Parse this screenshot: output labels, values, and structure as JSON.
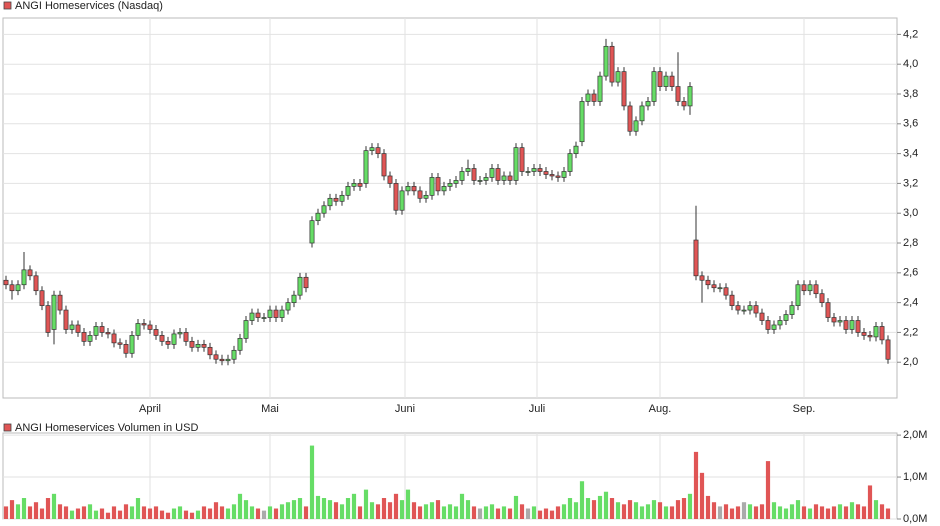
{
  "chart_data": [
    {
      "type": "candlestick",
      "title": "ANGI Homeservices (Nasdaq)",
      "up_color": "#66dd66",
      "down_color": "#e05555",
      "grid": true,
      "xlim": [
        -0.5,
        148.5
      ],
      "xticks": [
        {
          "value": 24,
          "label": "April"
        },
        {
          "value": 44,
          "label": "Mai"
        },
        {
          "value": 66.5,
          "label": "Juni"
        },
        {
          "value": 88.5,
          "label": "Juli"
        },
        {
          "value": 109,
          "label": "Aug."
        },
        {
          "value": 133,
          "label": "Sep."
        }
      ],
      "ylim": [
        1.76,
        4.31
      ],
      "yticks": [
        {
          "value": 2.0,
          "label": "2,0"
        },
        {
          "value": 2.2,
          "label": "2,2"
        },
        {
          "value": 2.4,
          "label": "2,4"
        },
        {
          "value": 2.6,
          "label": "2,6"
        },
        {
          "value": 2.8,
          "label": "2,8"
        },
        {
          "value": 3.0,
          "label": "3,0"
        },
        {
          "value": 3.2,
          "label": "3,2"
        },
        {
          "value": 3.4,
          "label": "3,4"
        },
        {
          "value": 3.6,
          "label": "3,6"
        },
        {
          "value": 3.8,
          "label": "3,8"
        },
        {
          "value": 4.0,
          "label": "4,0"
        },
        {
          "value": 4.2,
          "label": "4,2"
        }
      ],
      "open": [
        2.55,
        2.52,
        2.48,
        2.52,
        2.62,
        2.58,
        2.48,
        2.38,
        2.22,
        2.45,
        2.35,
        2.22,
        2.25,
        2.2,
        2.14,
        2.18,
        2.24,
        2.2,
        2.19,
        2.13,
        2.12,
        2.06,
        2.18,
        2.26,
        2.25,
        2.22,
        2.18,
        2.14,
        2.12,
        2.19,
        2.2,
        2.14,
        2.1,
        2.12,
        2.1,
        2.05,
        2.02,
        2.01,
        2.02,
        2.08,
        2.16,
        2.28,
        2.33,
        2.3,
        2.3,
        2.35,
        2.3,
        2.35,
        2.4,
        2.45,
        2.57,
        2.8,
        2.95,
        3.0,
        3.05,
        3.1,
        3.08,
        3.12,
        3.18,
        3.2,
        3.2,
        3.42,
        3.44,
        3.4,
        3.25,
        3.2,
        3.02,
        3.15,
        3.18,
        3.15,
        3.1,
        3.12,
        3.24,
        3.15,
        3.18,
        3.2,
        3.22,
        3.28,
        3.3,
        3.22,
        3.22,
        3.24,
        3.3,
        3.22,
        3.25,
        3.22,
        3.44,
        3.28,
        3.28,
        3.3,
        3.28,
        3.26,
        3.25,
        3.24,
        3.28,
        3.4,
        3.48,
        3.75,
        3.8,
        3.75,
        3.92,
        4.12,
        3.88,
        3.95,
        3.72,
        3.55,
        3.62,
        3.72,
        3.75,
        3.95,
        3.85,
        3.92,
        3.85,
        3.75,
        3.72,
        2.82,
        2.58,
        2.55,
        2.52,
        2.5,
        2.5,
        2.45,
        2.38,
        2.35,
        2.35,
        2.38,
        2.33,
        2.28,
        2.22,
        2.25,
        2.28,
        2.32,
        2.38,
        2.52,
        2.48,
        2.52,
        2.46,
        2.4,
        2.3,
        2.27,
        2.28,
        2.22,
        2.28,
        2.2,
        2.18,
        2.17,
        2.24,
        2.15
      ],
      "high": [
        2.58,
        2.55,
        2.55,
        2.74,
        2.65,
        2.61,
        2.51,
        2.41,
        2.48,
        2.48,
        2.38,
        2.28,
        2.28,
        2.23,
        2.21,
        2.27,
        2.27,
        2.23,
        2.22,
        2.16,
        2.15,
        2.21,
        2.29,
        2.29,
        2.28,
        2.25,
        2.21,
        2.17,
        2.22,
        2.23,
        2.23,
        2.17,
        2.15,
        2.15,
        2.13,
        2.08,
        2.05,
        2.05,
        2.11,
        2.19,
        2.31,
        2.36,
        2.36,
        2.33,
        2.38,
        2.38,
        2.38,
        2.43,
        2.48,
        2.6,
        2.6,
        2.98,
        3.03,
        3.08,
        3.13,
        3.13,
        3.15,
        3.21,
        3.23,
        3.23,
        3.45,
        3.47,
        3.47,
        3.43,
        3.28,
        3.23,
        3.18,
        3.21,
        3.21,
        3.18,
        3.15,
        3.27,
        3.27,
        3.21,
        3.23,
        3.25,
        3.31,
        3.36,
        3.33,
        3.25,
        3.27,
        3.33,
        3.33,
        3.28,
        3.28,
        3.47,
        3.47,
        3.31,
        3.33,
        3.33,
        3.31,
        3.29,
        3.28,
        3.31,
        3.43,
        3.48,
        3.78,
        3.83,
        3.83,
        3.95,
        4.17,
        4.15,
        3.98,
        3.98,
        3.75,
        3.65,
        3.75,
        3.78,
        3.98,
        3.98,
        3.95,
        3.95,
        4.08,
        3.78,
        3.88,
        3.05,
        2.61,
        2.58,
        2.55,
        2.53,
        2.53,
        2.48,
        2.41,
        2.38,
        2.41,
        2.41,
        2.36,
        2.31,
        2.28,
        2.31,
        2.35,
        2.41,
        2.55,
        2.55,
        2.55,
        2.55,
        2.49,
        2.43,
        2.33,
        2.31,
        2.31,
        2.31,
        2.31,
        2.23,
        2.21,
        2.27,
        2.27,
        2.18
      ],
      "low": [
        2.49,
        2.42,
        2.45,
        2.49,
        2.55,
        2.45,
        2.35,
        2.17,
        2.12,
        2.32,
        2.19,
        2.19,
        2.17,
        2.11,
        2.11,
        2.15,
        2.17,
        2.16,
        2.1,
        2.09,
        2.03,
        2.03,
        2.15,
        2.22,
        2.19,
        2.15,
        2.11,
        2.09,
        2.09,
        2.16,
        2.11,
        2.07,
        2.07,
        2.07,
        2.02,
        1.99,
        1.98,
        1.98,
        1.99,
        2.05,
        2.13,
        2.25,
        2.27,
        2.27,
        2.27,
        2.27,
        2.27,
        2.32,
        2.37,
        2.42,
        2.47,
        2.77,
        2.92,
        2.97,
        3.02,
        3.05,
        3.05,
        3.09,
        3.15,
        3.15,
        3.17,
        3.39,
        3.37,
        3.22,
        3.17,
        2.99,
        2.99,
        3.12,
        3.12,
        3.07,
        3.07,
        3.09,
        3.12,
        3.12,
        3.15,
        3.17,
        3.19,
        3.25,
        3.19,
        3.19,
        3.19,
        3.21,
        3.19,
        3.19,
        3.19,
        3.19,
        3.25,
        3.25,
        3.25,
        3.25,
        3.23,
        3.22,
        3.21,
        3.21,
        3.25,
        3.37,
        3.45,
        3.72,
        3.72,
        3.72,
        3.89,
        3.85,
        3.85,
        3.69,
        3.52,
        3.52,
        3.59,
        3.69,
        3.72,
        3.82,
        3.82,
        3.82,
        3.72,
        3.69,
        3.66,
        2.55,
        2.4,
        2.49,
        2.47,
        2.47,
        2.42,
        2.35,
        2.32,
        2.32,
        2.32,
        2.3,
        2.25,
        2.19,
        2.19,
        2.22,
        2.25,
        2.29,
        2.35,
        2.45,
        2.45,
        2.43,
        2.37,
        2.27,
        2.24,
        2.24,
        2.19,
        2.19,
        2.17,
        2.15,
        2.14,
        2.14,
        2.12,
        1.99
      ],
      "close": [
        2.52,
        2.48,
        2.52,
        2.62,
        2.58,
        2.48,
        2.38,
        2.2,
        2.45,
        2.35,
        2.22,
        2.25,
        2.2,
        2.14,
        2.18,
        2.24,
        2.2,
        2.19,
        2.13,
        2.12,
        2.06,
        2.18,
        2.26,
        2.25,
        2.22,
        2.18,
        2.14,
        2.12,
        2.19,
        2.2,
        2.14,
        2.1,
        2.12,
        2.1,
        2.05,
        2.02,
        2.01,
        2.02,
        2.08,
        2.16,
        2.28,
        2.33,
        2.3,
        2.3,
        2.35,
        2.3,
        2.35,
        2.4,
        2.45,
        2.57,
        2.5,
        2.95,
        3.0,
        3.05,
        3.1,
        3.08,
        3.12,
        3.18,
        3.2,
        3.18,
        3.42,
        3.44,
        3.4,
        3.25,
        3.2,
        3.02,
        3.15,
        3.18,
        3.15,
        3.1,
        3.12,
        3.24,
        3.15,
        3.18,
        3.2,
        3.22,
        3.28,
        3.3,
        3.22,
        3.22,
        3.24,
        3.3,
        3.22,
        3.25,
        3.22,
        3.44,
        3.28,
        3.28,
        3.3,
        3.28,
        3.26,
        3.25,
        3.24,
        3.28,
        3.4,
        3.45,
        3.75,
        3.8,
        3.75,
        3.92,
        4.12,
        3.88,
        3.95,
        3.72,
        3.55,
        3.62,
        3.72,
        3.75,
        3.95,
        3.85,
        3.92,
        3.85,
        3.75,
        3.72,
        3.85,
        2.58,
        2.55,
        2.52,
        2.5,
        2.5,
        2.45,
        2.38,
        2.35,
        2.35,
        2.38,
        2.33,
        2.28,
        2.22,
        2.25,
        2.28,
        2.32,
        2.38,
        2.52,
        2.48,
        2.52,
        2.46,
        2.4,
        2.3,
        2.27,
        2.28,
        2.22,
        2.28,
        2.2,
        2.18,
        2.17,
        2.24,
        2.15,
        2.02
      ]
    },
    {
      "type": "volume",
      "title": "ANGI Homeservices Volumen in USD",
      "neutral_color": "#aaaaaa",
      "grid": true,
      "ylim": [
        0,
        2.05
      ],
      "yticks": [
        {
          "value": 0,
          "label": "0,0M"
        },
        {
          "value": 1,
          "label": "1,0M"
        },
        {
          "value": 2,
          "label": "2,0M"
        }
      ],
      "values": [
        0.3,
        0.45,
        0.35,
        0.5,
        0.3,
        0.4,
        0.25,
        0.5,
        0.6,
        0.35,
        0.3,
        0.2,
        0.25,
        0.3,
        0.35,
        0.2,
        0.25,
        0.15,
        0.3,
        0.2,
        0.35,
        0.3,
        0.5,
        0.3,
        0.25,
        0.3,
        0.2,
        0.15,
        0.25,
        0.3,
        0.2,
        0.15,
        0.2,
        0.3,
        0.25,
        0.4,
        0.3,
        0.25,
        0.35,
        0.6,
        0.45,
        0.3,
        0.25,
        0.2,
        0.3,
        0.25,
        0.35,
        0.4,
        0.45,
        0.5,
        0.3,
        1.75,
        0.55,
        0.5,
        0.45,
        0.4,
        0.35,
        0.5,
        0.6,
        0.3,
        0.7,
        0.4,
        0.35,
        0.5,
        0.4,
        0.6,
        0.45,
        0.7,
        0.4,
        0.3,
        0.35,
        0.4,
        0.45,
        0.3,
        0.35,
        0.3,
        0.6,
        0.45,
        0.3,
        0.25,
        0.3,
        0.35,
        0.25,
        0.3,
        0.25,
        0.55,
        0.35,
        0.25,
        0.3,
        0.2,
        0.25,
        0.2,
        0.3,
        0.35,
        0.5,
        0.4,
        0.9,
        0.5,
        0.45,
        0.55,
        0.65,
        0.5,
        0.4,
        0.35,
        0.45,
        0.4,
        0.3,
        0.35,
        0.45,
        0.4,
        0.3,
        0.3,
        0.45,
        0.5,
        0.6,
        1.6,
        1.1,
        0.55,
        0.4,
        0.3,
        0.35,
        0.25,
        0.3,
        0.4,
        0.35,
        0.3,
        0.35,
        1.38,
        0.4,
        0.3,
        0.25,
        0.35,
        0.45,
        0.3,
        0.25,
        0.35,
        0.3,
        0.25,
        0.3,
        0.35,
        0.3,
        0.4,
        0.35,
        0.3,
        0.8,
        0.45,
        0.35,
        0.25
      ]
    }
  ]
}
